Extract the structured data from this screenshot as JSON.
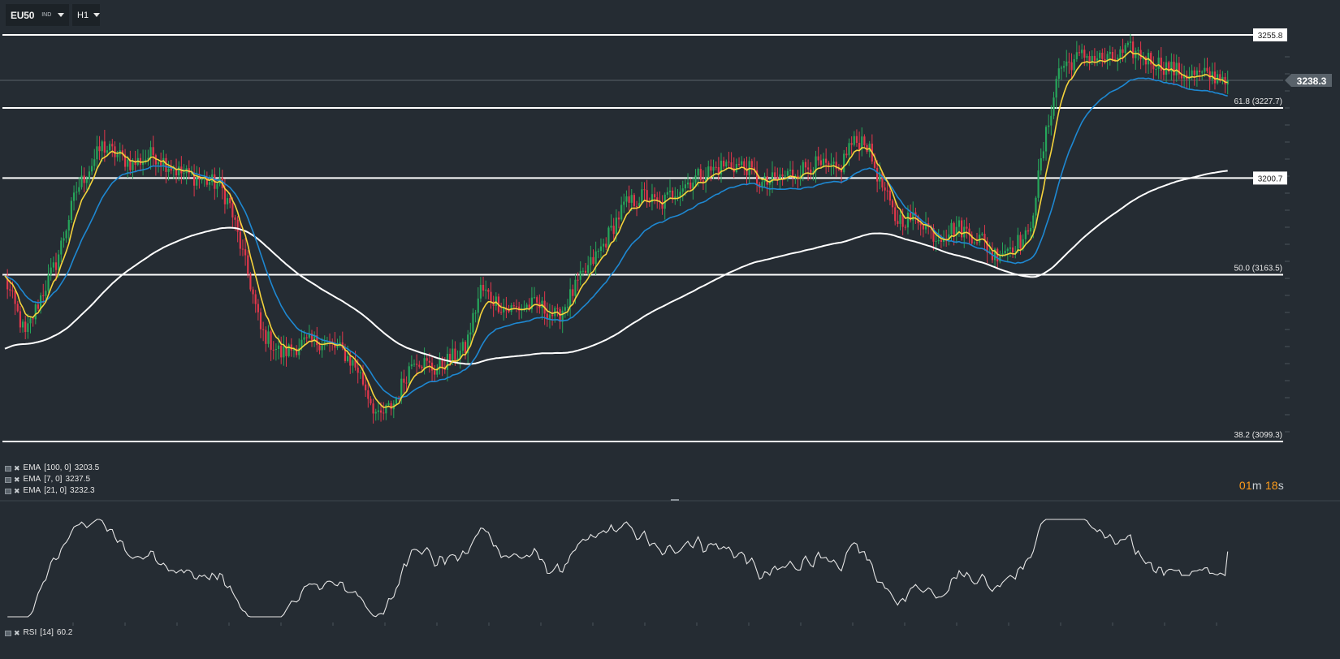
{
  "toolbar": {
    "symbol": "EU50",
    "symbol_type": "IND",
    "timeframe": "H1"
  },
  "countdown": {
    "minutes": "01",
    "minutes_unit": "m",
    "seconds": "18",
    "seconds_unit": "s"
  },
  "indicators": [
    {
      "name": "EMA",
      "params": "[100,  0]",
      "value": "3203.5",
      "color": "#ffffff"
    },
    {
      "name": "EMA",
      "params": "[7, 0]",
      "value": "3237.5",
      "color": "#f5d33c"
    },
    {
      "name": "EMA",
      "params": "[21, 0]",
      "value": "3232.3",
      "color": "#1e88d2"
    }
  ],
  "rsi_legend": {
    "name": "RSI",
    "params": "[14]",
    "value": "60.2"
  },
  "colors": {
    "background": "#252c33",
    "bull": "#26a65b",
    "bear": "#e0374b",
    "ema7": "#f5d33c",
    "ema21": "#1e88d2",
    "ema100": "#ffffff",
    "countdown": "#ff9c1a"
  },
  "chart_data": {
    "type": "candlestick",
    "symbol": "EU50",
    "timeframe": "H1",
    "ylim": [
      3070,
      3270
    ],
    "current_price": 3238.3,
    "current_price_label": "3238.3",
    "levels": [
      {
        "value": 3255.8,
        "label": "3255.8",
        "style": "boxed"
      },
      {
        "value": 3227.7,
        "label": "61.8 (3227.7)",
        "style": "fib"
      },
      {
        "value": 3200.7,
        "label": "3200.7",
        "style": "boxed"
      },
      {
        "value": 3163.5,
        "label": "50.0 (3163.5)",
        "style": "fib"
      },
      {
        "value": 3099.3,
        "label": "38.2 (3099.3)",
        "style": "fib"
      }
    ],
    "keypoints": [
      [
        0,
        3162
      ],
      [
        8,
        3140
      ],
      [
        14,
        3155
      ],
      [
        20,
        3168
      ],
      [
        28,
        3196
      ],
      [
        38,
        3213
      ],
      [
        50,
        3206
      ],
      [
        58,
        3210
      ],
      [
        68,
        3203
      ],
      [
        84,
        3198
      ],
      [
        88,
        3190
      ],
      [
        96,
        3160
      ],
      [
        100,
        3142
      ],
      [
        108,
        3133
      ],
      [
        116,
        3137
      ],
      [
        124,
        3138
      ],
      [
        132,
        3134
      ],
      [
        138,
        3127
      ],
      [
        146,
        3108
      ],
      [
        152,
        3114
      ],
      [
        160,
        3132
      ],
      [
        168,
        3127
      ],
      [
        180,
        3135
      ],
      [
        186,
        3158
      ],
      [
        196,
        3150
      ],
      [
        208,
        3152
      ],
      [
        216,
        3147
      ],
      [
        224,
        3160
      ],
      [
        234,
        3175
      ],
      [
        242,
        3190
      ],
      [
        250,
        3194
      ],
      [
        256,
        3190
      ],
      [
        262,
        3196
      ],
      [
        272,
        3202
      ],
      [
        282,
        3206
      ],
      [
        290,
        3205
      ],
      [
        296,
        3198
      ],
      [
        306,
        3202
      ],
      [
        316,
        3206
      ],
      [
        326,
        3203
      ],
      [
        330,
        3213
      ],
      [
        336,
        3216
      ],
      [
        340,
        3205
      ],
      [
        348,
        3185
      ],
      [
        358,
        3185
      ],
      [
        364,
        3178
      ],
      [
        372,
        3182
      ],
      [
        382,
        3177
      ],
      [
        386,
        3171
      ],
      [
        394,
        3175
      ],
      [
        400,
        3178
      ],
      [
        406,
        3212
      ],
      [
        412,
        3243
      ],
      [
        422,
        3248
      ],
      [
        432,
        3246
      ],
      [
        440,
        3250
      ],
      [
        448,
        3246
      ],
      [
        460,
        3241
      ],
      [
        470,
        3240
      ],
      [
        478,
        3240
      ]
    ],
    "ema100_value": 3203.5,
    "ema7_value": 3237.5,
    "ema21_value": 3232.3,
    "rsi": {
      "period": 14,
      "value": 60.2,
      "ylim": [
        20,
        80
      ]
    }
  }
}
